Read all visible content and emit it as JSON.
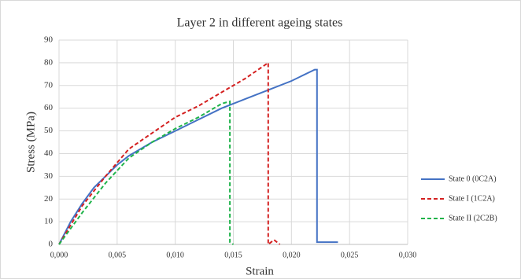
{
  "chart_data": {
    "type": "line",
    "title": "Layer 2 in different ageing states",
    "x_label": "Strain",
    "y_label": "Stress (MPa)",
    "xlim": [
      0,
      0.03
    ],
    "ylim": [
      0,
      90
    ],
    "xticks": [
      {
        "value": 0,
        "label": "0,000"
      },
      {
        "value": 0.005,
        "label": "0,005"
      },
      {
        "value": 0.01,
        "label": "0,010"
      },
      {
        "value": 0.015,
        "label": "0,015"
      },
      {
        "value": 0.02,
        "label": "0,020"
      },
      {
        "value": 0.025,
        "label": "0,025"
      },
      {
        "value": 0.03,
        "label": "0,030"
      }
    ],
    "yticks": [
      0,
      10,
      20,
      30,
      40,
      50,
      60,
      70,
      80,
      90
    ],
    "grid": true,
    "legend": "right",
    "series": [
      {
        "name": "State  0 (0C2A)",
        "color": "#4472c4",
        "line_style": "solid",
        "x": [
          0,
          0.001,
          0.002,
          0.003,
          0.004,
          0.005,
          0.006,
          0.008,
          0.01,
          0.012,
          0.014,
          0.016,
          0.018,
          0.02,
          0.022,
          0.0222,
          0.0222,
          0.024
        ],
        "values": [
          0,
          10,
          18,
          25,
          30,
          35,
          39,
          45,
          50,
          55,
          60,
          64,
          68,
          72,
          77,
          77,
          1,
          1
        ]
      },
      {
        "name": "State I (1C2A)",
        "color": "#d42020",
        "line_style": "dashed",
        "x": [
          0,
          0.002,
          0.004,
          0.006,
          0.008,
          0.01,
          0.012,
          0.014,
          0.016,
          0.018,
          0.018,
          0.0185,
          0.019
        ],
        "values": [
          0,
          17,
          30,
          42,
          49,
          56,
          61,
          67,
          73,
          80,
          0,
          2,
          0
        ]
      },
      {
        "name": "State II (2C2B)",
        "color": "#1fb34a",
        "line_style": "dashed",
        "x": [
          0,
          0.002,
          0.004,
          0.006,
          0.008,
          0.01,
          0.012,
          0.014,
          0.0147,
          0.0147,
          0.015
        ],
        "values": [
          0,
          14,
          27,
          38,
          45,
          51,
          56,
          62,
          63,
          1,
          0
        ]
      }
    ]
  }
}
